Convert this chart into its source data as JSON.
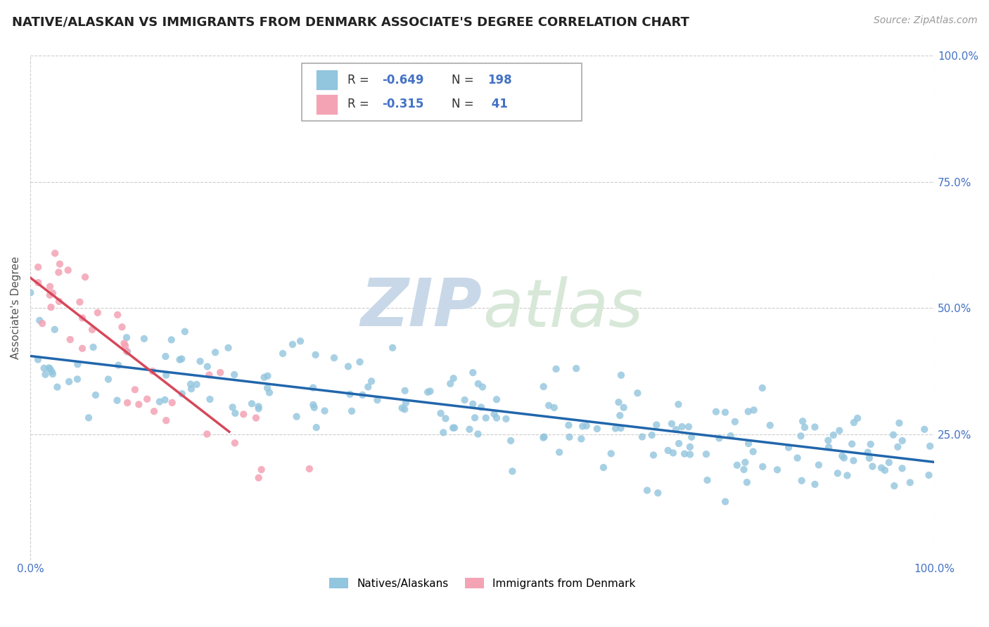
{
  "title": "NATIVE/ALASKAN VS IMMIGRANTS FROM DENMARK ASSOCIATE'S DEGREE CORRELATION CHART",
  "source_text": "Source: ZipAtlas.com",
  "ylabel": "Associate's Degree",
  "watermark_zip": "ZIP",
  "watermark_atlas": "atlas",
  "xlim": [
    0.0,
    1.0
  ],
  "ylim": [
    0.0,
    1.0
  ],
  "blue_color": "#92c5de",
  "pink_color": "#f4a3b5",
  "blue_line_color": "#2166ac",
  "pink_line_color": "#d6485a",
  "title_color": "#222222",
  "axis_label_color": "#555555",
  "tick_color": "#4472c4",
  "grid_color": "#cccccc",
  "background_color": "#ffffff",
  "watermark_color": "#dde8f0",
  "legend_label1": "Natives/Alaskans",
  "legend_label2": "Immigrants from Denmark",
  "blue_line_x0": 0.0,
  "blue_line_x1": 1.0,
  "blue_line_y0": 0.405,
  "blue_line_y1": 0.195,
  "pink_line_x0": 0.0,
  "pink_line_x1": 0.22,
  "pink_line_y0": 0.56,
  "pink_line_y1": 0.255
}
